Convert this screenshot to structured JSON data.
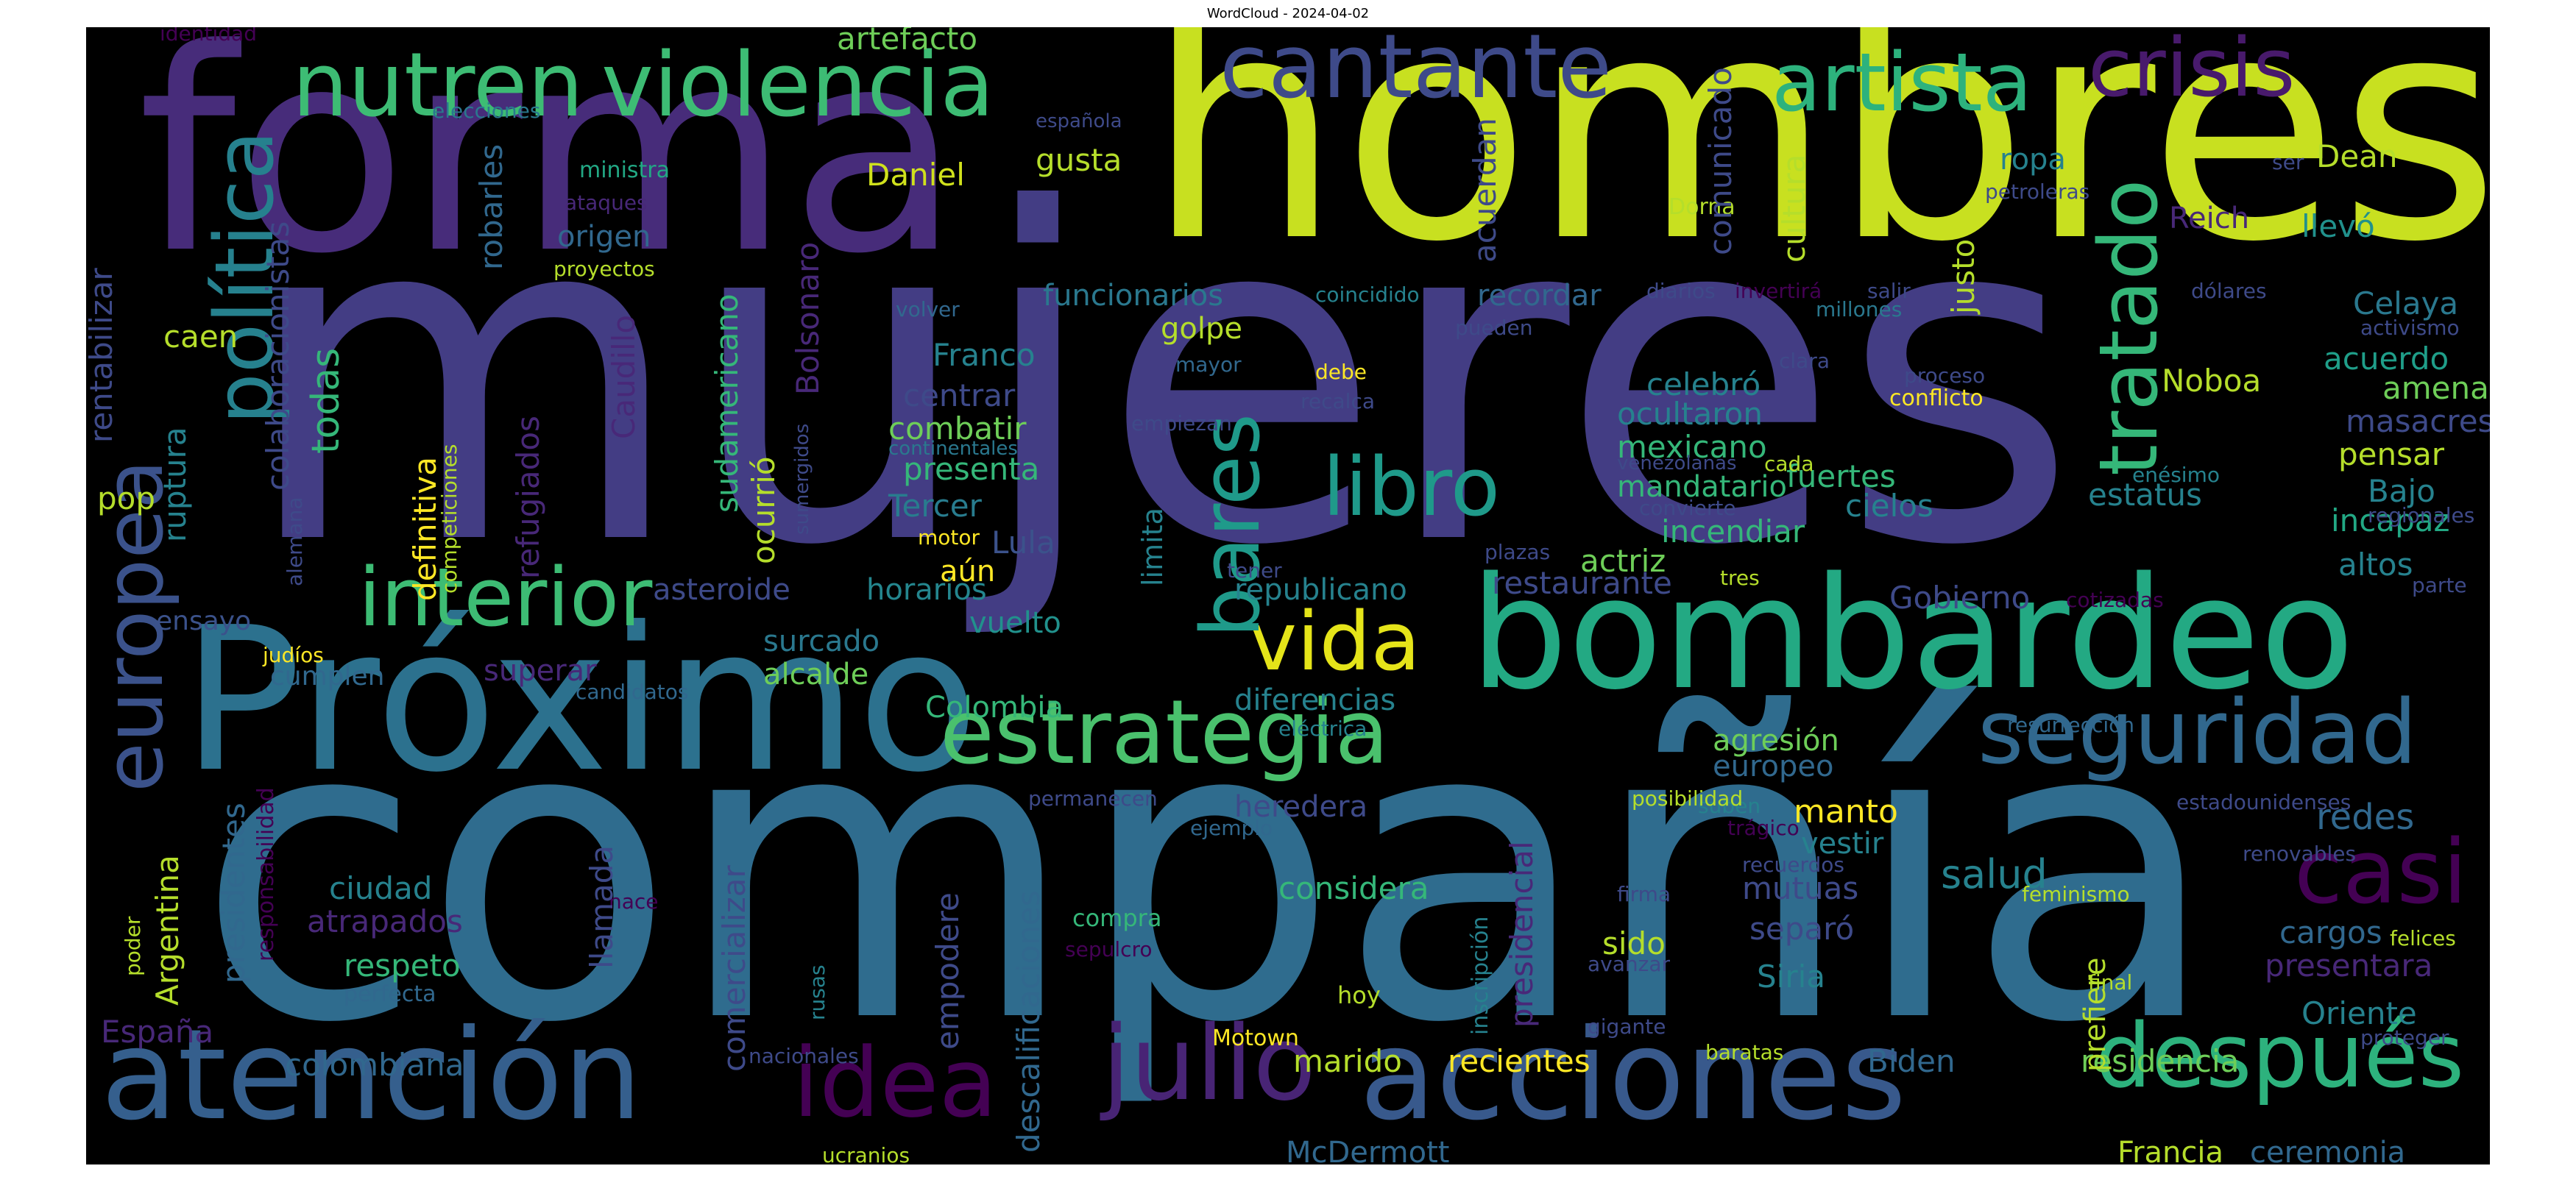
{
  "figure": {
    "title": "WordCloud - 2024-04-02"
  },
  "palette": {
    "background": "#000000",
    "colors": [
      "#440154",
      "#482878",
      "#3e4a89",
      "#31688e",
      "#26828e",
      "#1f9e89",
      "#35b779",
      "#6ece58",
      "#b5de2b",
      "#fde725"
    ]
  },
  "words": [
    {
      "t": "mujeres",
      "c": "#433d84"
    },
    {
      "t": "compañía",
      "c": "#2f6c8e"
    },
    {
      "t": "hombres",
      "c": "#c8e020"
    },
    {
      "t": "forma",
      "c": "#472c7a"
    },
    {
      "t": "Próximo",
      "c": "#2c718e"
    },
    {
      "t": "bombardeo",
      "c": "#23a983"
    },
    {
      "t": "atención",
      "c": "#355f8d"
    },
    {
      "t": "acciones",
      "c": "#38598c"
    },
    {
      "t": "estrategia",
      "c": "#4ac16d"
    },
    {
      "t": "seguridad",
      "c": "#31688e"
    },
    {
      "t": "violencia",
      "c": "#3dbc74"
    },
    {
      "t": "nutren",
      "c": "#3dbc74"
    },
    {
      "t": "cantante",
      "c": "#3e4a89"
    },
    {
      "t": "artista",
      "c": "#2db27d"
    },
    {
      "t": "crisis",
      "c": "#481a6c"
    },
    {
      "t": "interior",
      "c": "#3dbc74"
    },
    {
      "t": "vida",
      "c": "#e5e419"
    },
    {
      "t": "libro",
      "c": "#1f9a8a"
    },
    {
      "t": "julio",
      "c": "#482475"
    },
    {
      "t": "idea",
      "c": "#440154"
    },
    {
      "t": "después",
      "c": "#2db27d"
    },
    {
      "t": "casi",
      "c": "#440154"
    },
    {
      "t": "política",
      "c": "#26818e"
    },
    {
      "t": "europea",
      "c": "#3b528b"
    },
    {
      "t": "bares",
      "c": "#1f9a8a"
    },
    {
      "t": "tratado",
      "c": "#35b779"
    },
    {
      "t": "Daniel",
      "c": "#d0e11c"
    },
    {
      "t": "artefacto",
      "c": "#6ece58"
    },
    {
      "t": "gusta",
      "c": "#b5de2b"
    },
    {
      "t": "funcionarios",
      "c": "#2a788e"
    },
    {
      "t": "recordar",
      "c": "#31688e"
    },
    {
      "t": "golpe",
      "c": "#b5de2b"
    },
    {
      "t": "Franco",
      "c": "#26828e"
    },
    {
      "t": "centrar",
      "c": "#3e4a89"
    },
    {
      "t": "combatir",
      "c": "#6ece58"
    },
    {
      "t": "presenta",
      "c": "#35b779"
    },
    {
      "t": "Tercer",
      "c": "#287c8e"
    },
    {
      "t": "Lula",
      "c": "#3b528b"
    },
    {
      "t": "aún",
      "c": "#fde725"
    },
    {
      "t": "horarios",
      "c": "#24868e"
    },
    {
      "t": "vuelto",
      "c": "#21918c"
    },
    {
      "t": "surcado",
      "c": "#2a788e"
    },
    {
      "t": "alcalde",
      "c": "#6ece58"
    },
    {
      "t": "Colombia",
      "c": "#35b779"
    },
    {
      "t": "asteroide",
      "c": "#3e4a89"
    },
    {
      "t": "superar",
      "c": "#482878"
    },
    {
      "t": "cumplen",
      "c": "#31688e"
    },
    {
      "t": "ensayo",
      "c": "#3b528b"
    },
    {
      "t": "judíos",
      "c": "#fde725"
    },
    {
      "t": "candidatos",
      "c": "#31688e"
    },
    {
      "t": "origen",
      "c": "#31688e"
    },
    {
      "t": "ministra",
      "c": "#22a884"
    },
    {
      "t": "ataques",
      "c": "#482878"
    },
    {
      "t": "proyectos",
      "c": "#b5de2b"
    },
    {
      "t": "elecciones",
      "c": "#2a788e"
    },
    {
      "t": "identidad",
      "c": "#440154"
    },
    {
      "t": "española",
      "c": "#3e4a89"
    },
    {
      "t": "volver",
      "c": "#31688e"
    },
    {
      "t": "mayor",
      "c": "#31688e"
    },
    {
      "t": "debe",
      "c": "#fde725"
    },
    {
      "t": "recalca",
      "c": "#3e4a89"
    },
    {
      "t": "empiezan",
      "c": "#3e4a89"
    },
    {
      "t": "continentales",
      "c": "#2a788e"
    },
    {
      "t": "motor",
      "c": "#fde725"
    },
    {
      "t": "sumergidos",
      "c": "#3e4a89"
    },
    {
      "t": "coincidido",
      "c": "#26828e"
    },
    {
      "t": "pueden",
      "c": "#3e4a89"
    },
    {
      "t": "diarios",
      "c": "#3e4a89"
    },
    {
      "t": "invertirá",
      "c": "#440154"
    },
    {
      "t": "salir",
      "c": "#3e4a89"
    },
    {
      "t": "millones",
      "c": "#2a788e"
    },
    {
      "t": "Dorna",
      "c": "#b5de2b"
    },
    {
      "t": "petroleras",
      "c": "#3e4a89"
    },
    {
      "t": "ropa",
      "c": "#26828e"
    },
    {
      "t": "Reich",
      "c": "#482878"
    },
    {
      "t": "llevó",
      "c": "#21918c"
    },
    {
      "t": "Dean",
      "c": "#b5de2b"
    },
    {
      "t": "ser",
      "c": "#3e4a89"
    },
    {
      "t": "dólares",
      "c": "#3e4a89"
    },
    {
      "t": "activismo",
      "c": "#3e4a89"
    },
    {
      "t": "Celaya",
      "c": "#2a788e"
    },
    {
      "t": "acuerdo",
      "c": "#1f9e89"
    },
    {
      "t": "amenaza",
      "c": "#6ece58"
    },
    {
      "t": "Noboa",
      "c": "#b5de2b"
    },
    {
      "t": "masacres",
      "c": "#3e4a89"
    },
    {
      "t": "pensar",
      "c": "#b5de2b"
    },
    {
      "t": "Bajo",
      "c": "#26828e"
    },
    {
      "t": "incapaz",
      "c": "#22a884"
    },
    {
      "t": "altos",
      "c": "#26828e"
    },
    {
      "t": "regionales",
      "c": "#3e4a89"
    },
    {
      "t": "parte",
      "c": "#3e4a89"
    },
    {
      "t": "enésimo",
      "c": "#26828e"
    },
    {
      "t": "estatus",
      "c": "#26828e"
    },
    {
      "t": "fuertes",
      "c": "#35b779"
    },
    {
      "t": "cielos",
      "c": "#26828e"
    },
    {
      "t": "celebró",
      "c": "#26828e"
    },
    {
      "t": "ocultaron",
      "c": "#26828e"
    },
    {
      "t": "mexicano",
      "c": "#35b779"
    },
    {
      "t": "mandatario",
      "c": "#35b779"
    },
    {
      "t": "incendiar",
      "c": "#35b779"
    },
    {
      "t": "actriz",
      "c": "#6ece58"
    },
    {
      "t": "restaurante",
      "c": "#3e4a89"
    },
    {
      "t": "republicano",
      "c": "#26828e"
    },
    {
      "t": "Gobierno",
      "c": "#3e4a89"
    },
    {
      "t": "cotizadas",
      "c": "#440154"
    },
    {
      "t": "tres",
      "c": "#b5de2b"
    },
    {
      "t": "plazas",
      "c": "#3e4a89"
    },
    {
      "t": "tener",
      "c": "#3e4a89"
    },
    {
      "t": "convierte",
      "c": "#3e4a89"
    },
    {
      "t": "cada",
      "c": "#b5de2b"
    },
    {
      "t": "venezolanas",
      "c": "#3e4a89"
    },
    {
      "t": "proceso",
      "c": "#3e4a89"
    },
    {
      "t": "conflicto",
      "c": "#fde725"
    },
    {
      "t": "clara",
      "c": "#3e4a89"
    },
    {
      "t": "limita",
      "c": "#26828e"
    },
    {
      "t": "diferencias",
      "c": "#26828e"
    },
    {
      "t": "eléctrica",
      "c": "#26828e"
    },
    {
      "t": "agresión",
      "c": "#6ece58"
    },
    {
      "t": "europeo",
      "c": "#31688e"
    },
    {
      "t": "heredera",
      "c": "#3e4a89"
    },
    {
      "t": "manto",
      "c": "#fde725"
    },
    {
      "t": "vestir",
      "c": "#26828e"
    },
    {
      "t": "redes",
      "c": "#31688e"
    },
    {
      "t": "salud",
      "c": "#26828e"
    },
    {
      "t": "considera",
      "c": "#35b779"
    },
    {
      "t": "mutuas",
      "c": "#3e4a89"
    },
    {
      "t": "separó",
      "c": "#3e4a89"
    },
    {
      "t": "sido",
      "c": "#b5de2b"
    },
    {
      "t": "Siria",
      "c": "#26828e"
    },
    {
      "t": "cargos",
      "c": "#31688e"
    },
    {
      "t": "presentara",
      "c": "#482878"
    },
    {
      "t": "Oriente",
      "c": "#26828e"
    },
    {
      "t": "residencia",
      "c": "#6ece58"
    },
    {
      "t": "Biden",
      "c": "#31688e"
    },
    {
      "t": "marido",
      "c": "#b5de2b"
    },
    {
      "t": "recientes",
      "c": "#fde725"
    },
    {
      "t": "McDermott",
      "c": "#31688e"
    },
    {
      "t": "Francia",
      "c": "#b5de2b"
    },
    {
      "t": "ceremonia",
      "c": "#31688e"
    },
    {
      "t": "prefiere",
      "c": "#b5de2b"
    },
    {
      "t": "resurrección",
      "c": "#31688e"
    },
    {
      "t": "estadounidenses",
      "c": "#3e4a89"
    },
    {
      "t": "renovables",
      "c": "#3e4a89"
    },
    {
      "t": "feminismo",
      "c": "#b5de2b"
    },
    {
      "t": "felices",
      "c": "#b5de2b"
    },
    {
      "t": "final",
      "c": "#b5de2b"
    },
    {
      "t": "proteger",
      "c": "#3e4a89"
    },
    {
      "t": "baratas",
      "c": "#b5de2b"
    },
    {
      "t": "gigante",
      "c": "#3e4a89"
    },
    {
      "t": "avanzar",
      "c": "#3e4a89"
    },
    {
      "t": "firma",
      "c": "#3e4a89"
    },
    {
      "t": "recuerdos",
      "c": "#3e4a89"
    },
    {
      "t": "trágico",
      "c": "#440154"
    },
    {
      "t": "suben",
      "c": "#26828e"
    },
    {
      "t": "posibilidad",
      "c": "#b5de2b"
    },
    {
      "t": "hace",
      "c": "#440154"
    },
    {
      "t": "compra",
      "c": "#35b779"
    },
    {
      "t": "sepulcro",
      "c": "#440154"
    },
    {
      "t": "hoy",
      "c": "#b5de2b"
    },
    {
      "t": "Motown",
      "c": "#fde725"
    },
    {
      "t": "permanecen",
      "c": "#3e4a89"
    },
    {
      "t": "ejemplo",
      "c": "#31688e"
    },
    {
      "t": "ciudad",
      "c": "#26828e"
    },
    {
      "t": "atrapados",
      "c": "#482878"
    },
    {
      "t": "respeto",
      "c": "#35b779"
    },
    {
      "t": "perfecta",
      "c": "#31688e"
    },
    {
      "t": "colombiana",
      "c": "#31688e"
    },
    {
      "t": "nacionales",
      "c": "#3e4a89"
    },
    {
      "t": "ucranios",
      "c": "#b5de2b"
    },
    {
      "t": "España",
      "c": "#482878"
    },
    {
      "t": "pop",
      "c": "#b5de2b"
    },
    {
      "t": "caen",
      "c": "#b5de2b"
    },
    {
      "t": "todas",
      "c": "#35b779"
    },
    {
      "t": "ruptura",
      "c": "#26828e"
    },
    {
      "t": "rentabilizar",
      "c": "#3e4a89"
    },
    {
      "t": "colaboracionistas",
      "c": "#3e4a89"
    },
    {
      "t": "robarles",
      "c": "#31688e"
    },
    {
      "t": "Caudillo",
      "c": "#482878"
    },
    {
      "t": "refugiados",
      "c": "#482878"
    },
    {
      "t": "definitiva",
      "c": "#fde725"
    },
    {
      "t": "competiciones",
      "c": "#b5de2b"
    },
    {
      "t": "alemana",
      "c": "#3e4a89"
    },
    {
      "t": "sudamericano",
      "c": "#35b779"
    },
    {
      "t": "ocurrió",
      "c": "#b5de2b"
    },
    {
      "t": "Bolsonaro",
      "c": "#482878"
    },
    {
      "t": "cultura",
      "c": "#b5de2b"
    },
    {
      "t": "comunicado",
      "c": "#3e4a89"
    },
    {
      "t": "acuerdan",
      "c": "#3e4a89"
    },
    {
      "t": "justo",
      "c": "#b5de2b"
    },
    {
      "t": "presidentes",
      "c": "#31688e"
    },
    {
      "t": "responsabilidad",
      "c": "#440154"
    },
    {
      "t": "Argentina",
      "c": "#b5de2b"
    },
    {
      "t": "poder",
      "c": "#b5de2b"
    },
    {
      "t": "llamada",
      "c": "#3e4a89"
    },
    {
      "t": "comercializar",
      "c": "#3e4a89"
    },
    {
      "t": "descalificaciones",
      "c": "#31688e"
    },
    {
      "t": "empodere",
      "c": "#3e4a89"
    },
    {
      "t": "rusas",
      "c": "#26828e"
    },
    {
      "t": "presidencial",
      "c": "#482878"
    },
    {
      "t": "inscripción",
      "c": "#26828e"
    }
  ]
}
